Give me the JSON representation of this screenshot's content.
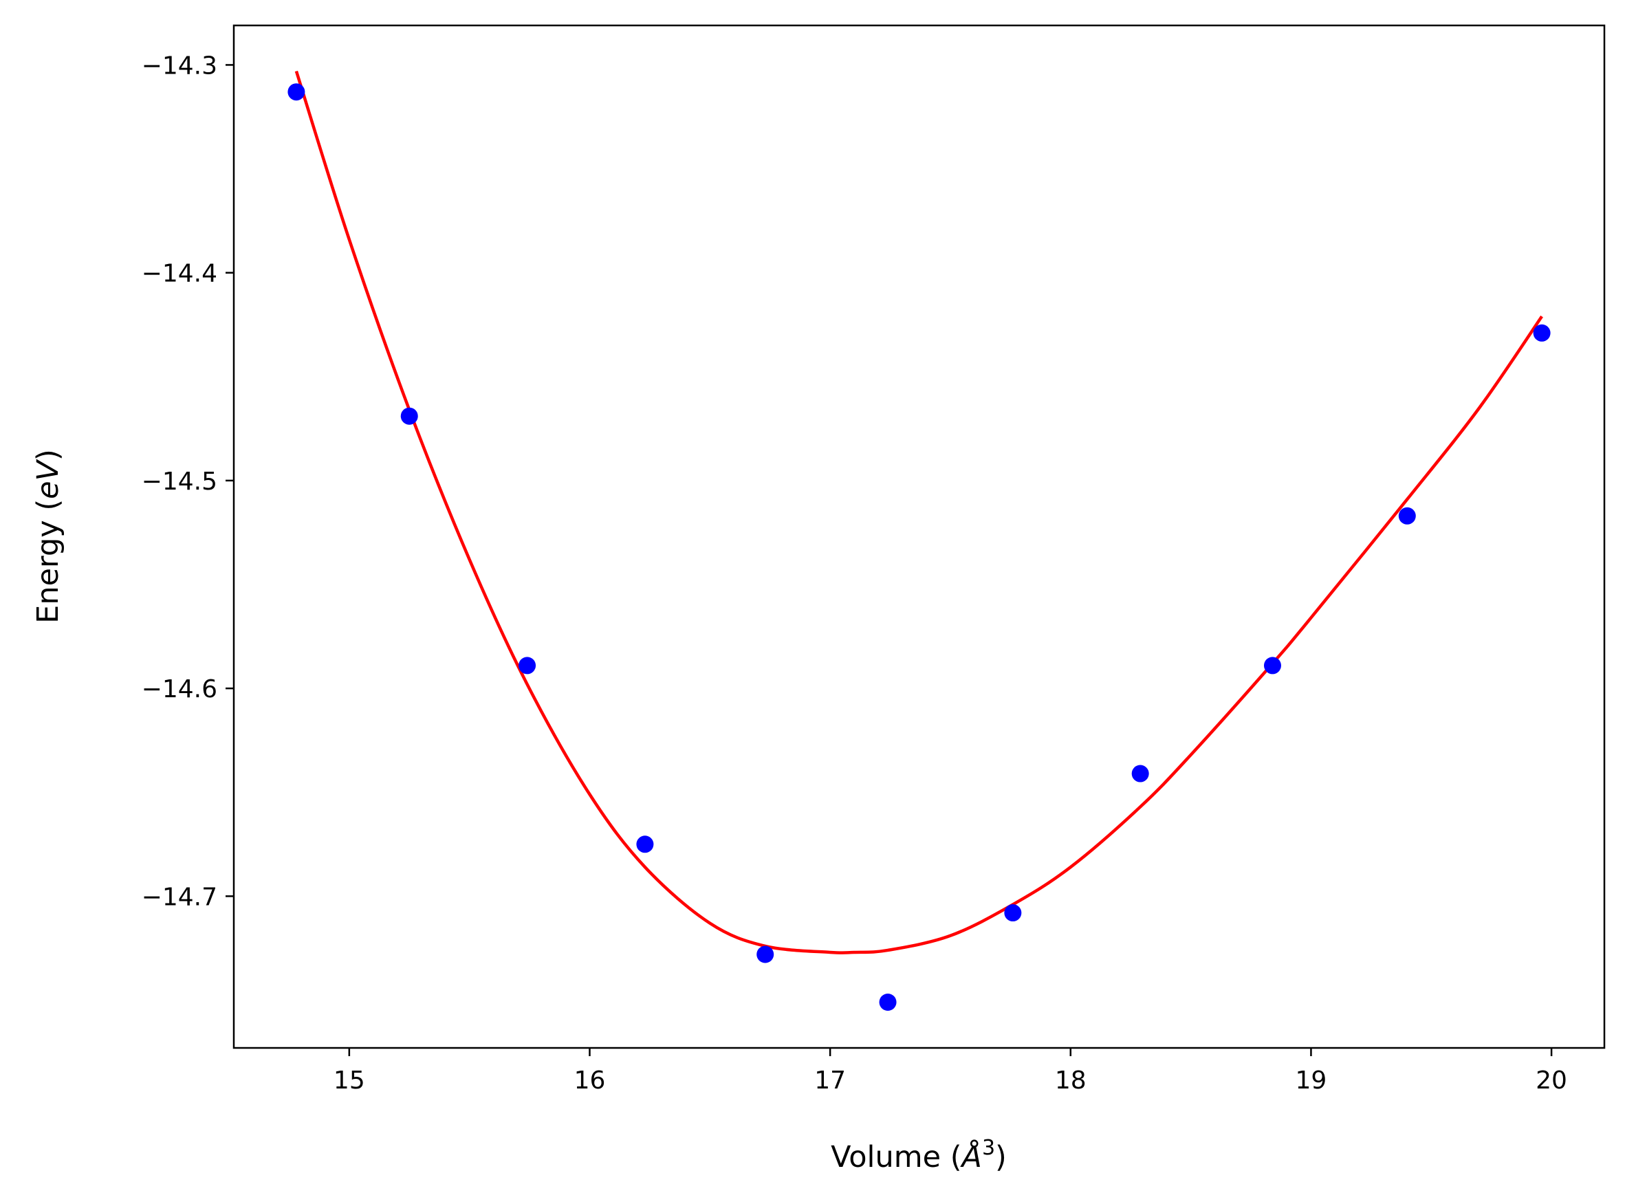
{
  "chart_data": {
    "type": "scatter",
    "title": "",
    "xlabel": "Volume ($\\AA^3$)",
    "ylabel": "Energy ($eV$)",
    "xlabel_parts": {
      "before": "Volume (",
      "symbol": "Å",
      "superscript": "3",
      "after": ")"
    },
    "ylabel_parts": {
      "before": "Energy (",
      "italic": "eV",
      "after": ")"
    },
    "xlim": [
      14.52,
      20.22
    ],
    "ylim": [
      -14.773,
      -14.281
    ],
    "xticks": [
      15,
      16,
      17,
      18,
      19,
      20
    ],
    "xtick_labels": [
      "15",
      "16",
      "17",
      "18",
      "19",
      "20"
    ],
    "yticks": [
      -14.3,
      -14.4,
      -14.5,
      -14.6,
      -14.7
    ],
    "ytick_labels": [
      "−14.3",
      "−14.4",
      "−14.5",
      "−14.6",
      "−14.7"
    ],
    "grid": false,
    "series": [
      {
        "kind": "points",
        "color": "#0000ff",
        "x": [
          14.78,
          15.25,
          15.74,
          16.23,
          16.73,
          17.24,
          17.76,
          18.29,
          18.84,
          19.4,
          19.96
        ],
        "y": [
          -14.313,
          -14.469,
          -14.589,
          -14.675,
          -14.728,
          -14.751,
          -14.708,
          -14.641,
          -14.589,
          -14.517,
          -14.429
        ]
      },
      {
        "kind": "fit-curve",
        "color": "#ff0000",
        "x": [
          14.78,
          15.0,
          15.25,
          15.5,
          15.74,
          16.0,
          16.23,
          16.5,
          16.73,
          17.0,
          17.1,
          17.24,
          17.5,
          17.76,
          18.0,
          18.29,
          18.5,
          18.84,
          19.0,
          19.4,
          19.7,
          19.96
        ],
        "y": [
          -14.303,
          -14.384,
          -14.466,
          -14.538,
          -14.598,
          -14.651,
          -14.686,
          -14.713,
          -14.724,
          -14.727,
          -14.727,
          -14.726,
          -14.719,
          -14.704,
          -14.686,
          -14.657,
          -14.632,
          -14.588,
          -14.566,
          -14.509,
          -14.465,
          -14.421
        ]
      }
    ]
  }
}
